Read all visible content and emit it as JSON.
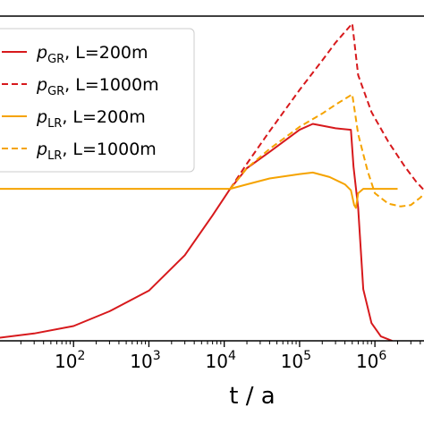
{
  "chart_data": {
    "type": "line",
    "title": "",
    "xlabel": "t / a",
    "ylabel": "",
    "xscale": "log",
    "xlim": [
      10,
      5000000
    ],
    "ylim": [
      0,
      2.2
    ],
    "x_ticks": [
      {
        "base": "10",
        "exp": "2",
        "value": 100
      },
      {
        "base": "10",
        "exp": "3",
        "value": 1000
      },
      {
        "base": "10",
        "exp": "4",
        "value": 10000
      },
      {
        "base": "10",
        "exp": "5",
        "value": 100000
      },
      {
        "base": "10",
        "exp": "6",
        "value": 1000000
      }
    ],
    "grid": false,
    "legend": {
      "placement": "top-left",
      "entries": [
        {
          "symbol": "p",
          "sub": "GR",
          "suffix": ", L=200m",
          "color": "#d7191c",
          "dash": "solid"
        },
        {
          "symbol": "p",
          "sub": "GR",
          "suffix": ", L=1000m",
          "color": "#d7191c",
          "dash": "dashed"
        },
        {
          "symbol": "p",
          "sub": "LR",
          "suffix": ", L=200m",
          "color": "#f5a300",
          "dash": "solid"
        },
        {
          "symbol": "p",
          "sub": "LR",
          "suffix": ", L=1000m",
          "color": "#f5a300",
          "dash": "dashed"
        }
      ]
    },
    "series": [
      {
        "id": "gr200",
        "color": "#d7191c",
        "dash": "solid",
        "points": [
          [
            10,
            0.02
          ],
          [
            30,
            0.05
          ],
          [
            100,
            0.1
          ],
          [
            300,
            0.2
          ],
          [
            1000,
            0.34
          ],
          [
            3000,
            0.58
          ],
          [
            7000,
            0.85
          ],
          [
            12000,
            1.03
          ],
          [
            20000,
            1.17
          ],
          [
            40000,
            1.28
          ],
          [
            100000,
            1.43
          ],
          [
            150000,
            1.47
          ],
          [
            300000,
            1.44
          ],
          [
            480000,
            1.43
          ],
          [
            520000,
            1.18
          ],
          [
            600000,
            0.9
          ],
          [
            700000,
            0.35
          ],
          [
            900000,
            0.12
          ],
          [
            1200000,
            0.03
          ],
          [
            1700000,
            0.0
          ]
        ]
      },
      {
        "id": "gr1000",
        "color": "#d7191c",
        "dash": "dashed",
        "points": [
          [
            12000,
            1.03
          ],
          [
            20000,
            1.2
          ],
          [
            40000,
            1.42
          ],
          [
            100000,
            1.7
          ],
          [
            200000,
            1.9
          ],
          [
            300000,
            2.02
          ],
          [
            500000,
            2.15
          ],
          [
            600000,
            1.8
          ],
          [
            900000,
            1.55
          ],
          [
            1500000,
            1.35
          ],
          [
            2500000,
            1.18
          ],
          [
            3500000,
            1.08
          ],
          [
            4500000,
            1.02
          ]
        ]
      },
      {
        "id": "lr200",
        "color": "#f5a300",
        "dash": "solid",
        "points": [
          [
            10,
            1.03
          ],
          [
            12000,
            1.03
          ],
          [
            20000,
            1.06
          ],
          [
            40000,
            1.1
          ],
          [
            100000,
            1.13
          ],
          [
            150000,
            1.14
          ],
          [
            250000,
            1.11
          ],
          [
            400000,
            1.06
          ],
          [
            480000,
            1.02
          ],
          [
            530000,
            0.92
          ],
          [
            560000,
            0.9
          ],
          [
            600000,
            1.0
          ],
          [
            700000,
            1.03
          ],
          [
            2000000,
            1.03
          ]
        ]
      },
      {
        "id": "lr1000",
        "color": "#f5a300",
        "dash": "dashed",
        "points": [
          [
            12000,
            1.03
          ],
          [
            20000,
            1.17
          ],
          [
            40000,
            1.3
          ],
          [
            100000,
            1.45
          ],
          [
            200000,
            1.54
          ],
          [
            300000,
            1.6
          ],
          [
            500000,
            1.67
          ],
          [
            600000,
            1.4
          ],
          [
            800000,
            1.15
          ],
          [
            1000000,
            1.0
          ],
          [
            1500000,
            0.93
          ],
          [
            2200000,
            0.91
          ],
          [
            3000000,
            0.92
          ],
          [
            4000000,
            0.97
          ],
          [
            5000000,
            1.02
          ]
        ]
      }
    ]
  }
}
